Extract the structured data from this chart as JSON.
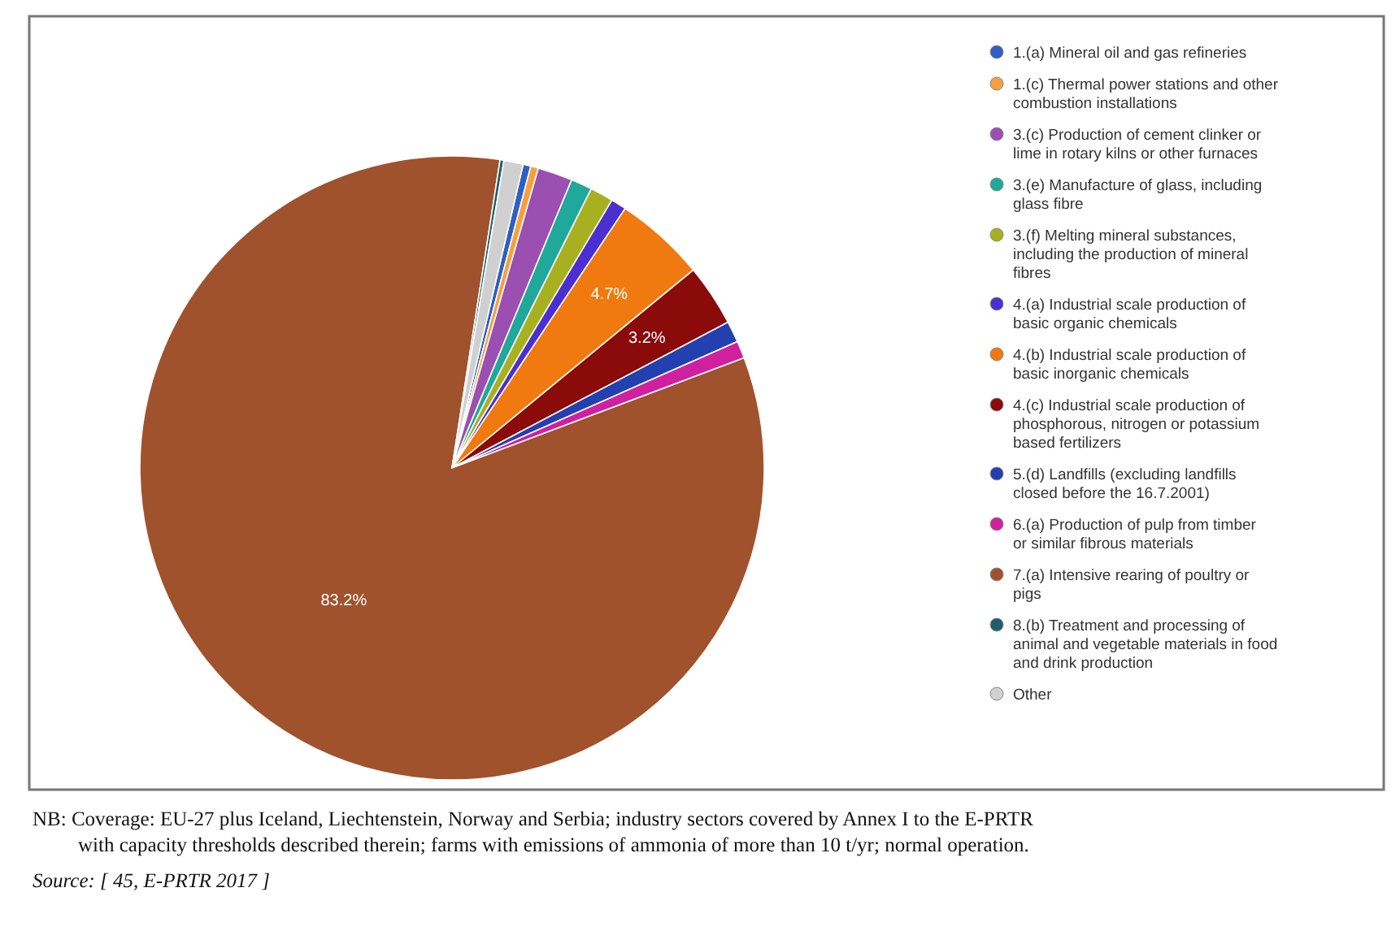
{
  "chart_data": {
    "type": "pie",
    "categories": [
      "1.(a) Mineral oil and gas refineries",
      "1.(c) Thermal power stations and other combustion installations",
      "3.(c) Production of cement clinker or lime in rotary kilns or other furnaces",
      "3.(e) Manufacture of glass, including glass fibre",
      "3.(f) Melting mineral substances, including the production of mineral fibres",
      "4.(a) Industrial scale production of basic organic chemicals",
      "4.(b) Industrial scale production of basic inorganic chemicals",
      "4.(c) Industrial scale production of phosphorous, nitrogen or potassium based fertilizers",
      "5.(d) Landfills (excluding landfills closed before the 16.7.2001)",
      "6.(a) Production of pulp from timber or similar fibrous materials",
      "7.(a) Intensive rearing of poultry or pigs",
      "8.(b) Treatment and processing of animal and vegetable materials in food and drink production",
      "Other"
    ],
    "values": [
      0.4,
      0.4,
      1.8,
      1.1,
      1.2,
      0.8,
      4.7,
      3.2,
      1.1,
      0.9,
      83.2,
      0.2,
      1.0
    ],
    "colors": [
      "#2e5fc4",
      "#f5a040",
      "#9b4fb0",
      "#20a89a",
      "#a8b020",
      "#4b2fd0",
      "#f07a10",
      "#8b0a0a",
      "#2340b0",
      "#d020a0",
      "#a0522d",
      "#1f5f6a",
      "#d0d0d0"
    ],
    "value_labels": [
      null,
      null,
      null,
      null,
      null,
      null,
      "4.7%",
      "3.2%",
      null,
      null,
      "83.2%",
      null,
      null
    ],
    "legend": "right",
    "annotations": [
      "NB: Coverage: EU-27 plus Iceland, Liechtenstein, Norway and Serbia; industry sectors covered by Annex I to the E-PRTR with capacity thresholds described therein; farms with emissions of ammonia of more than 10 t/yr; normal operation.",
      "Source: [ 45, E-PRTR 2017 ]"
    ]
  }
}
